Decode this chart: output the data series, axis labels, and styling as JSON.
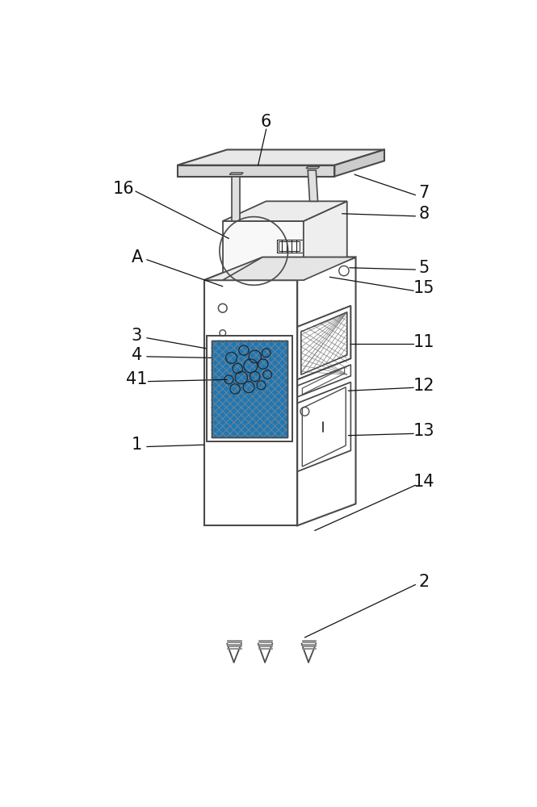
{
  "bg_color": "#ffffff",
  "lc": "#4a4a4a",
  "lc_light": "#888888",
  "lc_dark": "#222222",
  "figsize": [
    6.65,
    10.0
  ],
  "dpi": 100,
  "label_fs": 15,
  "label_color": "#111111"
}
